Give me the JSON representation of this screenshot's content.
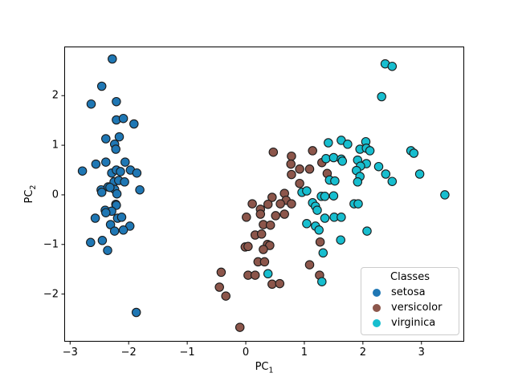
{
  "figure": {
    "background": "#ffffff",
    "border_color": "#000000"
  },
  "chart_data": {
    "type": "scatter",
    "title": "",
    "xlabel": {
      "text": "PC",
      "sub": "1"
    },
    "ylabel": {
      "text": "PC",
      "sub": "2"
    },
    "xlim": [
      -3.1,
      3.73
    ],
    "ylim": [
      -2.96,
      2.99
    ],
    "xtick_values": [
      -3,
      -2,
      -1,
      0,
      1,
      2,
      3
    ],
    "xtick_labels": [
      "−3",
      "−2",
      "−1",
      "0",
      "1",
      "2",
      "3"
    ],
    "ytick_values": [
      -2,
      -1,
      0,
      1,
      2
    ],
    "ytick_labels": [
      "−2",
      "−1",
      "0",
      "1",
      "2"
    ],
    "grid": false,
    "marker": {
      "edge_color": "#1a1a1a",
      "radius_px": 5.2,
      "edge_width": 1.1
    },
    "legend": {
      "title": "Classes",
      "position": "lower-right"
    },
    "series": [
      {
        "name": "setosa",
        "color": "#1f77b4",
        "points": [
          [
            -2.28,
            2.74
          ],
          [
            -2.46,
            2.19
          ],
          [
            -2.64,
            1.83
          ],
          [
            -2.21,
            1.88
          ],
          [
            -2.21,
            1.51
          ],
          [
            -2.09,
            1.54
          ],
          [
            -1.91,
            1.43
          ],
          [
            -2.39,
            1.13
          ],
          [
            -2.16,
            1.17
          ],
          [
            -2.24,
            1.02
          ],
          [
            -2.22,
            0.92
          ],
          [
            -2.56,
            0.62
          ],
          [
            -2.39,
            0.66
          ],
          [
            -2.06,
            0.66
          ],
          [
            -2.79,
            0.48
          ],
          [
            -2.29,
            0.44
          ],
          [
            -2.21,
            0.5
          ],
          [
            -2.14,
            0.47
          ],
          [
            -1.97,
            0.5
          ],
          [
            -1.86,
            0.44
          ],
          [
            -2.25,
            0.26
          ],
          [
            -2.17,
            0.29
          ],
          [
            -2.07,
            0.26
          ],
          [
            -2.47,
            0.1
          ],
          [
            -2.35,
            0.16
          ],
          [
            -2.24,
            0.11
          ],
          [
            -1.81,
            0.1
          ],
          [
            -2.46,
            0.05
          ],
          [
            -2.32,
            0.15
          ],
          [
            -2.2,
            0.02
          ],
          [
            -2.22,
            -0.19
          ],
          [
            -2.21,
            -0.21
          ],
          [
            -2.4,
            -0.31
          ],
          [
            -2.29,
            -0.33
          ],
          [
            -2.39,
            -0.36
          ],
          [
            -2.57,
            -0.47
          ],
          [
            -2.19,
            -0.47
          ],
          [
            -2.12,
            -0.45
          ],
          [
            -2.31,
            -0.6
          ],
          [
            -1.98,
            -0.63
          ],
          [
            -2.24,
            -0.73
          ],
          [
            -2.09,
            -0.71
          ],
          [
            -2.65,
            -0.96
          ],
          [
            -2.45,
            -0.92
          ],
          [
            -2.36,
            -1.12
          ],
          [
            -1.87,
            -2.37
          ]
        ]
      },
      {
        "name": "versicolor",
        "color": "#8c564b",
        "points": [
          [
            0.47,
            0.86
          ],
          [
            0.78,
            0.78
          ],
          [
            1.14,
            0.89
          ],
          [
            0.77,
            0.62
          ],
          [
            0.92,
            0.52
          ],
          [
            1.09,
            0.52
          ],
          [
            1.3,
            0.65
          ],
          [
            1.39,
            0.43
          ],
          [
            0.78,
            0.41
          ],
          [
            0.92,
            0.23
          ],
          [
            0.66,
            0.03
          ],
          [
            0.45,
            -0.05
          ],
          [
            0.69,
            -0.11
          ],
          [
            0.11,
            -0.18
          ],
          [
            0.38,
            -0.19
          ],
          [
            0.59,
            -0.18
          ],
          [
            0.78,
            -0.18
          ],
          [
            0.25,
            -0.29
          ],
          [
            0.25,
            -0.39
          ],
          [
            0.01,
            -0.45
          ],
          [
            0.51,
            -0.42
          ],
          [
            0.66,
            -0.39
          ],
          [
            0.3,
            -0.6
          ],
          [
            0.42,
            -0.61
          ],
          [
            0.16,
            -0.81
          ],
          [
            0.27,
            -0.79
          ],
          [
            1.27,
            -0.95
          ],
          [
            0.37,
            -1.0
          ],
          [
            0.41,
            -1.02
          ],
          [
            -0.01,
            -1.05
          ],
          [
            0.04,
            -1.04
          ],
          [
            0.3,
            -1.1
          ],
          [
            0.21,
            -1.35
          ],
          [
            0.32,
            -1.35
          ],
          [
            1.09,
            -1.41
          ],
          [
            -0.42,
            -1.56
          ],
          [
            0.04,
            -1.62
          ],
          [
            0.16,
            -1.62
          ],
          [
            1.26,
            -1.62
          ],
          [
            0.45,
            -1.8
          ],
          [
            0.58,
            -1.79
          ],
          [
            -0.45,
            -1.86
          ],
          [
            -0.34,
            -2.04
          ],
          [
            -0.1,
            -2.67
          ]
        ]
      },
      {
        "name": "virginica",
        "color": "#17becf",
        "points": [
          [
            2.38,
            2.64
          ],
          [
            2.5,
            2.59
          ],
          [
            2.32,
            1.98
          ],
          [
            1.41,
            1.05
          ],
          [
            1.63,
            1.1
          ],
          [
            1.74,
            1.02
          ],
          [
            2.05,
            1.07
          ],
          [
            1.95,
            0.92
          ],
          [
            2.06,
            0.94
          ],
          [
            2.12,
            0.89
          ],
          [
            1.37,
            0.73
          ],
          [
            1.5,
            0.75
          ],
          [
            1.63,
            0.72
          ],
          [
            1.91,
            0.7
          ],
          [
            1.65,
            0.68
          ],
          [
            2.06,
            0.63
          ],
          [
            1.96,
            0.58
          ],
          [
            2.27,
            0.57
          ],
          [
            1.89,
            0.49
          ],
          [
            2.39,
            0.42
          ],
          [
            2.97,
            0.42
          ],
          [
            1.95,
            0.37
          ],
          [
            1.43,
            0.3
          ],
          [
            1.52,
            0.28
          ],
          [
            1.91,
            0.26
          ],
          [
            2.5,
            0.27
          ],
          [
            2.82,
            0.89
          ],
          [
            2.87,
            0.84
          ],
          [
            0.96,
            0.05
          ],
          [
            1.04,
            0.08
          ],
          [
            1.29,
            -0.03
          ],
          [
            1.35,
            -0.03
          ],
          [
            1.5,
            -0.02
          ],
          [
            3.4,
            0.0
          ],
          [
            1.14,
            -0.16
          ],
          [
            1.19,
            -0.23
          ],
          [
            1.22,
            -0.31
          ],
          [
            1.85,
            -0.18
          ],
          [
            1.92,
            -0.18
          ],
          [
            1.35,
            -0.47
          ],
          [
            1.51,
            -0.45
          ],
          [
            1.63,
            -0.45
          ],
          [
            1.04,
            -0.58
          ],
          [
            1.19,
            -0.63
          ],
          [
            1.25,
            -0.71
          ],
          [
            2.07,
            -0.73
          ],
          [
            1.62,
            -0.91
          ],
          [
            1.32,
            -1.17
          ],
          [
            0.38,
            -1.59
          ],
          [
            1.3,
            -1.75
          ]
        ]
      }
    ]
  }
}
